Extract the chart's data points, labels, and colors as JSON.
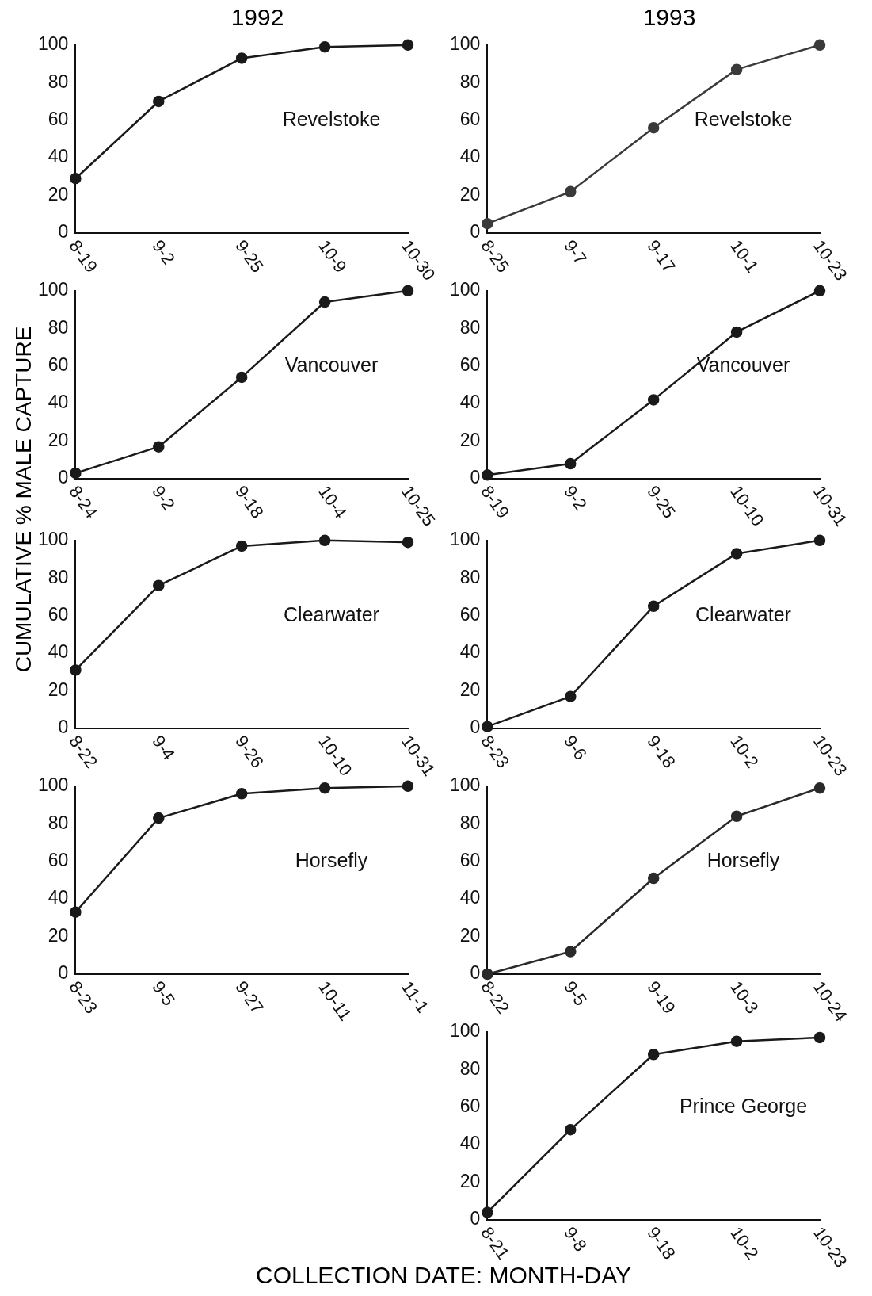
{
  "chart_data": [
    {
      "type": "line",
      "title": "1992",
      "ylabel": "CUMULATIVE % MALE CAPTURE",
      "annotations": [
        "Revelstoke"
      ],
      "categories": [
        "8-19",
        "9-2",
        "9-25",
        "10-9",
        "10-30"
      ],
      "series": [
        {
          "color": "#1a1a1a",
          "values": [
            29,
            70,
            93,
            99,
            100
          ]
        }
      ],
      "ylim": [
        0,
        100
      ],
      "yticks": [
        0,
        20,
        40,
        60,
        80,
        100
      ],
      "marker": "circle",
      "grid": false,
      "legend": false
    },
    {
      "type": "line",
      "title": "1993",
      "annotations": [
        "Revelstoke"
      ],
      "categories": [
        "8-25",
        "9-7",
        "9-17",
        "10-1",
        "10-23"
      ],
      "series": [
        {
          "color": "#3a3a3a",
          "values": [
            5,
            22,
            56,
            87,
            100
          ]
        }
      ],
      "ylim": [
        0,
        100
      ],
      "yticks": [
        0,
        20,
        40,
        60,
        80,
        100
      ],
      "marker": "circle",
      "grid": false,
      "legend": false
    },
    {
      "type": "line",
      "annotations": [
        "Vancouver"
      ],
      "categories": [
        "8-24",
        "9-2",
        "9-18",
        "10-4",
        "10-25"
      ],
      "series": [
        {
          "color": "#1a1a1a",
          "values": [
            3,
            17,
            54,
            94,
            100
          ]
        }
      ],
      "ylim": [
        0,
        100
      ],
      "yticks": [
        0,
        20,
        40,
        60,
        80,
        100
      ],
      "marker": "circle",
      "grid": false,
      "legend": false
    },
    {
      "type": "line",
      "annotations": [
        "Vancouver"
      ],
      "categories": [
        "8-19",
        "9-2",
        "9-25",
        "10-10",
        "10-31"
      ],
      "series": [
        {
          "color": "#1a1a1a",
          "values": [
            2,
            8,
            42,
            78,
            100
          ]
        }
      ],
      "ylim": [
        0,
        100
      ],
      "yticks": [
        0,
        20,
        40,
        60,
        80,
        100
      ],
      "marker": "circle",
      "grid": false,
      "legend": false
    },
    {
      "type": "line",
      "annotations": [
        "Clearwater"
      ],
      "categories": [
        "8-22",
        "9-4",
        "9-26",
        "10-10",
        "10-31"
      ],
      "series": [
        {
          "color": "#1a1a1a",
          "values": [
            31,
            76,
            97,
            100,
            99
          ]
        }
      ],
      "ylim": [
        0,
        100
      ],
      "yticks": [
        0,
        20,
        40,
        60,
        80,
        100
      ],
      "marker": "circle",
      "grid": false,
      "legend": false
    },
    {
      "type": "line",
      "annotations": [
        "Clearwater"
      ],
      "categories": [
        "8-23",
        "9-6",
        "9-18",
        "10-2",
        "10-23"
      ],
      "series": [
        {
          "color": "#1a1a1a",
          "values": [
            1,
            17,
            65,
            93,
            100
          ]
        }
      ],
      "ylim": [
        0,
        100
      ],
      "yticks": [
        0,
        20,
        40,
        60,
        80,
        100
      ],
      "marker": "circle",
      "grid": false,
      "legend": false
    },
    {
      "type": "line",
      "annotations": [
        "Horsefly"
      ],
      "categories": [
        "8-23",
        "9-5",
        "9-27",
        "10-11",
        "11-1"
      ],
      "series": [
        {
          "color": "#1a1a1a",
          "values": [
            33,
            83,
            96,
            99,
            100
          ]
        }
      ],
      "ylim": [
        0,
        100
      ],
      "yticks": [
        0,
        20,
        40,
        60,
        80,
        100
      ],
      "marker": "circle",
      "grid": false,
      "legend": false
    },
    {
      "type": "line",
      "annotations": [
        "Horsefly"
      ],
      "categories": [
        "8-22",
        "9-5",
        "9-19",
        "10-3",
        "10-24"
      ],
      "series": [
        {
          "color": "#2a2a2a",
          "values": [
            0,
            12,
            51,
            84,
            99
          ]
        }
      ],
      "ylim": [
        0,
        100
      ],
      "yticks": [
        0,
        20,
        40,
        60,
        80,
        100
      ],
      "marker": "circle",
      "grid": false,
      "legend": false
    },
    {
      "type": "line",
      "xlabel": "COLLECTION DATE:  MONTH-DAY",
      "annotations": [
        "Prince George"
      ],
      "categories": [
        "8-21",
        "9-8",
        "9-18",
        "10-2",
        "10-23"
      ],
      "series": [
        {
          "color": "#1a1a1a",
          "values": [
            4,
            48,
            88,
            95,
            97
          ]
        }
      ],
      "ylim": [
        0,
        100
      ],
      "yticks": [
        0,
        20,
        40,
        60,
        80,
        100
      ],
      "marker": "circle",
      "grid": false,
      "legend": false
    }
  ]
}
